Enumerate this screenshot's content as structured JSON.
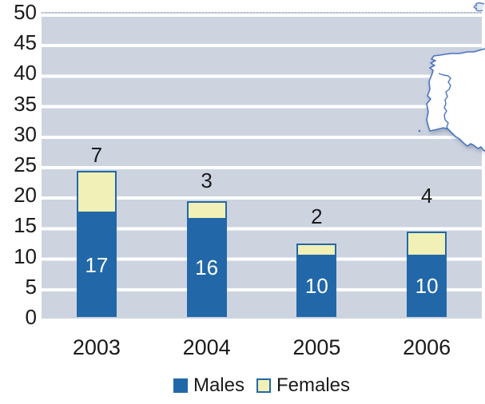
{
  "chart_data": {
    "type": "bar",
    "stacked": true,
    "title": "",
    "categories": [
      "2003",
      "2004",
      "2005",
      "2006"
    ],
    "series": [
      {
        "name": "Males",
        "values": [
          17,
          16,
          10,
          10
        ],
        "label_placement": "inside-center"
      },
      {
        "name": "Females",
        "values": [
          7,
          3,
          2,
          4
        ],
        "label_placement": "above-bar"
      }
    ],
    "xlabel": "",
    "ylabel": "",
    "ylim": [
      0,
      50
    ],
    "ytick_step": 5,
    "yticks": [
      "0",
      "5",
      "10",
      "15",
      "20",
      "25",
      "30",
      "35",
      "40",
      "45",
      "50"
    ],
    "grid": true,
    "legend_position": "bottom"
  },
  "legend": {
    "items": [
      {
        "label": "Males"
      },
      {
        "label": "Females"
      }
    ]
  },
  "colors": {
    "males_fill": "#2268A8",
    "females_fill": "#F1F0B6",
    "females_border": "#2268A8",
    "plot_band": "#CDD4E0",
    "grid_line": "#FFFFFF",
    "axis_text": "#1A1A1A",
    "inside_label_text": "#FFFFFF",
    "map_outline": "#4A74C0",
    "map_fill": "#FFFFFF"
  },
  "icons": {
    "map": "iberian-peninsula-outline",
    "corner_glyph": "coastline-squiggle"
  }
}
